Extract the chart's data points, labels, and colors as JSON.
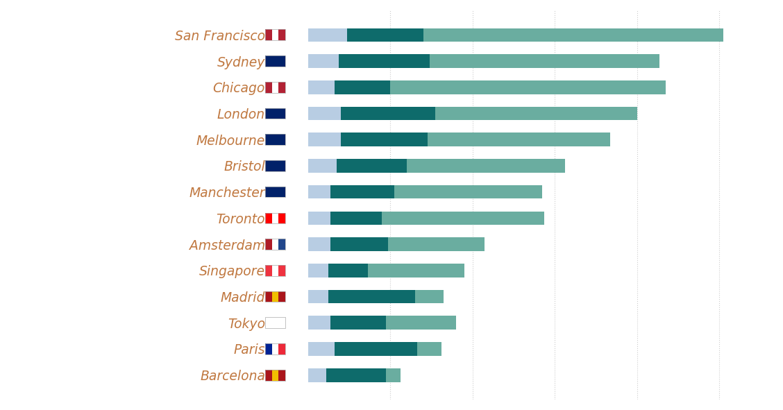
{
  "cities": [
    "San Francisco",
    "Sydney",
    "Chicago",
    "London",
    "Melbourne",
    "Bristol",
    "Manchester",
    "Toronto",
    "Amsterdam",
    "Singapore",
    "Madrid",
    "Tokyo",
    "Paris",
    "Barcelona"
  ],
  "seg1": [
    95,
    75,
    65,
    80,
    80,
    70,
    55,
    55,
    55,
    50,
    50,
    55,
    65,
    45
  ],
  "seg2": [
    185,
    220,
    135,
    230,
    210,
    170,
    155,
    125,
    140,
    95,
    210,
    135,
    200,
    145
  ],
  "seg3": [
    730,
    560,
    670,
    490,
    445,
    385,
    360,
    395,
    235,
    235,
    70,
    170,
    60,
    35
  ],
  "color1": "#b8cde3",
  "color2": "#0e6b6b",
  "color3": "#6aada0",
  "background_color": "#ffffff",
  "bar_height": 0.52,
  "gridline_color": "#cccccc",
  "label_color": "#c07840",
  "label_fontsize": 13.5,
  "xlim_max": 1130,
  "xticks": [
    200,
    400,
    600,
    800,
    1000
  ]
}
